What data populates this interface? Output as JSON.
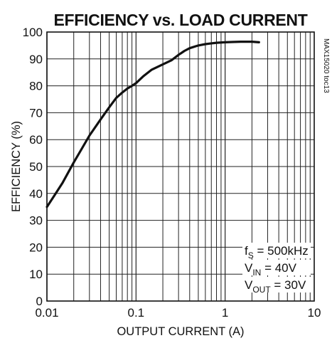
{
  "figure_id": "MAX15020 toc13",
  "chart_data": {
    "type": "line",
    "title": "EFFICIENCY vs. LOAD CURRENT",
    "xlabel": "OUTPUT CURRENT (A)",
    "ylabel": "EFFICIENCY (%)",
    "xscale": "log",
    "xlim": [
      0.01,
      10
    ],
    "ylim": [
      0,
      100
    ],
    "xticks": [
      {
        "value": 0.01,
        "label": "0.01"
      },
      {
        "value": 0.1,
        "label": "0.1"
      },
      {
        "value": 1,
        "label": "1"
      },
      {
        "value": 10,
        "label": "10"
      }
    ],
    "yticks": [
      0,
      10,
      20,
      30,
      40,
      50,
      60,
      70,
      80,
      90,
      100
    ],
    "grid": true,
    "series": [
      {
        "x": [
          0.01,
          0.012,
          0.015,
          0.02,
          0.025,
          0.03,
          0.04,
          0.05,
          0.06,
          0.07,
          0.08,
          0.09,
          0.1,
          0.12,
          0.15,
          0.2,
          0.25,
          0.3,
          0.35,
          0.4,
          0.5,
          0.6,
          0.7,
          0.8,
          1.0,
          1.2,
          1.5,
          2.0,
          2.4
        ],
        "y": [
          35,
          39,
          44,
          51.5,
          57,
          61.5,
          67.5,
          72,
          75.5,
          77.5,
          79,
          80,
          81,
          83.5,
          86,
          88,
          89.5,
          91.5,
          93,
          94,
          95,
          95.5,
          95.8,
          96,
          96.2,
          96.3,
          96.4,
          96.4,
          96.2
        ]
      }
    ],
    "annotations": [
      {
        "main": "f",
        "sub": "S",
        "rest": " = 500kHz"
      },
      {
        "main": "V",
        "sub": "IN",
        "rest": " = 40V"
      },
      {
        "main": "V",
        "sub": "OUT",
        "rest": " = 30V"
      }
    ]
  }
}
